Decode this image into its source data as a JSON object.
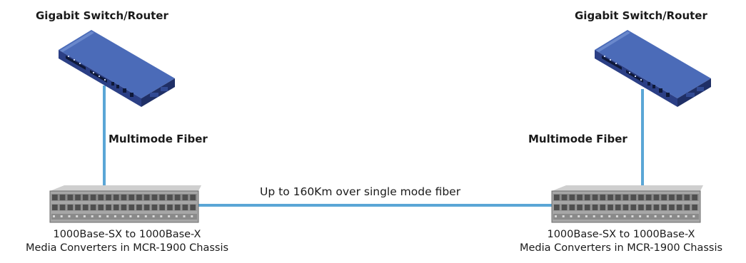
{
  "diagram": {
    "left_site": {
      "device_title": "Gigabit Switch/Router",
      "link_label": "Multimode Fiber",
      "converter_caption_line1": "1000Base-SX to 1000Base-X",
      "converter_caption_line2": "Media Converters in MCR-1900 Chassis"
    },
    "right_site": {
      "device_title": "Gigabit Switch/Router",
      "link_label": "Multimode Fiber",
      "converter_caption_line1": "1000Base-SX to 1000Base-X",
      "converter_caption_line2": "Media Converters in MCR-1900 Chassis"
    },
    "backbone_label": "Up to 160Km over single mode fiber",
    "colors": {
      "fiber": "#5aa6d6",
      "router_top": "#3f5fae",
      "router_front": "#2b3f85",
      "router_side": "#22336e",
      "chassis_body": "#a9a9a9",
      "chassis_dark": "#5e5e5e"
    }
  }
}
